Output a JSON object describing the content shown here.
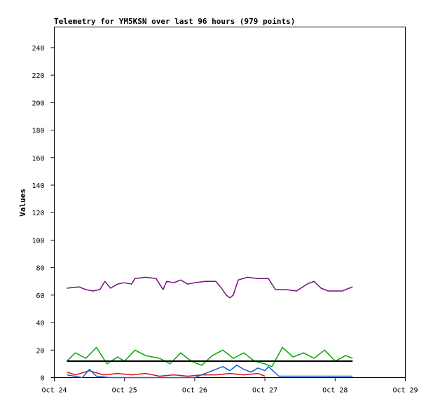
{
  "chart_data": {
    "type": "line",
    "title": "Telemetry for YM5KSN over last 96 hours (979 points)",
    "xlabel": "",
    "ylabel": "Values",
    "ylim": [
      0,
      255
    ],
    "yticks": [
      0,
      20,
      40,
      60,
      80,
      100,
      120,
      140,
      160,
      180,
      200,
      220,
      240
    ],
    "xlim": [
      "Oct 24",
      "Oct 29"
    ],
    "xticks": [
      "Oct 24",
      "Oct 25",
      "Oct 26",
      "Oct 27",
      "Oct 28",
      "Oct 29"
    ],
    "grid": false,
    "legend": "none",
    "series": [
      {
        "color": "#7a0e82",
        "x": [
          24.18,
          24.35,
          24.45,
          24.55,
          24.65,
          24.72,
          24.8,
          24.9,
          25.0,
          25.1,
          25.15,
          25.3,
          25.45,
          25.55,
          25.6,
          25.7,
          25.8,
          25.9,
          26.0,
          26.15,
          26.3,
          26.38,
          26.45,
          26.5,
          26.55,
          26.62,
          26.75,
          26.9,
          27.05,
          27.15,
          27.3,
          27.45,
          27.6,
          27.7,
          27.8,
          27.9,
          28.0,
          28.1,
          28.25
        ],
        "y": [
          65,
          66,
          64,
          63,
          64,
          70,
          65,
          68,
          69,
          68,
          72,
          73,
          72,
          64,
          70,
          69,
          71,
          68,
          69,
          70,
          70,
          65,
          60,
          58,
          60,
          71,
          73,
          72,
          72,
          64,
          64,
          63,
          68,
          70,
          65,
          63,
          63,
          63,
          66
        ]
      },
      {
        "color": "#00aa00",
        "x": [
          24.18,
          24.3,
          24.45,
          24.6,
          24.75,
          24.9,
          25.0,
          25.15,
          25.3,
          25.5,
          25.65,
          25.8,
          25.95,
          26.1,
          26.25,
          26.4,
          26.55,
          26.7,
          26.85,
          27.0,
          27.1,
          27.25,
          27.4,
          27.55,
          27.7,
          27.85,
          28.0,
          28.15,
          28.25
        ],
        "y": [
          12,
          18,
          14,
          22,
          10,
          15,
          12,
          20,
          16,
          14,
          10,
          18,
          12,
          9,
          16,
          20,
          14,
          18,
          12,
          10,
          8,
          22,
          15,
          18,
          14,
          20,
          12,
          16,
          14
        ]
      },
      {
        "color": "#e01010",
        "x": [
          24.18,
          24.3,
          24.5,
          24.7,
          24.9,
          25.1,
          25.3,
          25.5,
          25.7,
          25.9,
          26.1,
          26.3,
          26.5,
          26.7,
          26.9,
          27.0
        ],
        "y": [
          4,
          2,
          5,
          2,
          3,
          2,
          3,
          1,
          2,
          1,
          2,
          2,
          3,
          2,
          3,
          1
        ]
      },
      {
        "color": "#1060d0",
        "x": [
          24.18,
          24.4,
          24.5,
          24.6,
          24.8,
          25.0,
          25.5,
          26.0,
          26.2,
          26.3,
          26.4,
          26.5,
          26.6,
          26.7,
          26.8,
          26.9,
          27.0,
          27.05,
          27.2,
          27.5,
          27.8,
          28.0,
          28.25
        ],
        "y": [
          2,
          0,
          6,
          1,
          0,
          0,
          0,
          0,
          4,
          6,
          8,
          5,
          9,
          6,
          4,
          7,
          5,
          8,
          1,
          1,
          1,
          1,
          1
        ]
      },
      {
        "color": "#000000",
        "x": [
          24.18,
          28.25
        ],
        "y": [
          12,
          12
        ]
      }
    ]
  }
}
